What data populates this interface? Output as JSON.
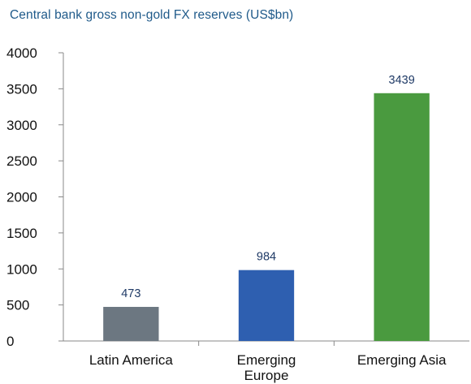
{
  "chart_data": {
    "type": "bar",
    "title": "Central bank gross non-gold FX reserves (US$bn)",
    "categories": [
      [
        "Latin America"
      ],
      [
        "Emerging",
        "Europe"
      ],
      [
        "Emerging Asia"
      ]
    ],
    "values": [
      473,
      984,
      3439
    ],
    "data_labels": [
      "473",
      "984",
      "3439"
    ],
    "colors": [
      "#6c7781",
      "#2e5fb0",
      "#4a9a3f"
    ],
    "ylim": [
      0,
      4000
    ],
    "yticks": [
      "0",
      "500",
      "1000",
      "1500",
      "2000",
      "2500",
      "3000",
      "3500",
      "4000"
    ],
    "xlabel": "",
    "ylabel": "",
    "grid": false,
    "legend": "none"
  }
}
